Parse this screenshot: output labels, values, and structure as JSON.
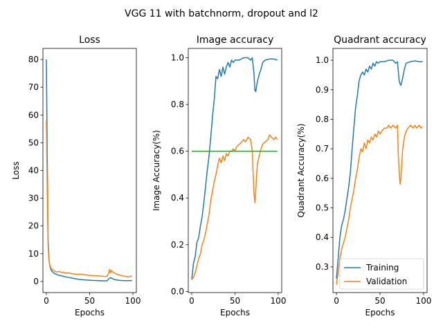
{
  "figure": {
    "suptitle": "VGG 11 with batchnorm, dropout and l2"
  },
  "colors": {
    "training": "#1f77b4",
    "validation": "#ff7f0e",
    "reference": "#2ca02c"
  },
  "chart_data": [
    {
      "type": "line",
      "title": "Loss",
      "xlabel": "Epochs",
      "ylabel": "Loss",
      "xlim": [
        -4,
        104
      ],
      "ylim": [
        -4,
        84
      ],
      "xticks": [
        0,
        50,
        100
      ],
      "yticks": [
        0,
        10,
        20,
        30,
        40,
        50,
        60,
        70,
        80
      ],
      "ytick_labels": [
        "0",
        "10",
        "20",
        "30",
        "40",
        "50",
        "60",
        "70",
        "80"
      ],
      "grid": false,
      "series": [
        {
          "name": "Training",
          "color": "#1f77b4",
          "x": [
            0,
            1,
            2,
            3,
            4,
            5,
            6,
            8,
            10,
            12,
            15,
            18,
            20,
            25,
            30,
            35,
            40,
            45,
            50,
            55,
            60,
            65,
            70,
            72,
            74,
            76,
            78,
            80,
            85,
            90,
            95,
            99
          ],
          "y": [
            80,
            45,
            15,
            8,
            5.5,
            4.5,
            3.8,
            3.2,
            2.8,
            2.5,
            2.2,
            2.0,
            1.8,
            1.5,
            1.2,
            0.9,
            0.7,
            0.55,
            0.45,
            0.35,
            0.3,
            0.25,
            0.2,
            0.9,
            1.4,
            1.1,
            0.8,
            0.6,
            0.4,
            0.3,
            0.3,
            0.35
          ]
        },
        {
          "name": "Validation",
          "color": "#ff7f0e",
          "x": [
            0,
            1,
            2,
            3,
            4,
            5,
            6,
            8,
            10,
            12,
            15,
            18,
            20,
            22,
            25,
            30,
            35,
            40,
            45,
            50,
            55,
            60,
            65,
            70,
            72,
            73,
            74,
            75,
            76,
            78,
            80,
            85,
            90,
            95,
            99
          ],
          "y": [
            58,
            33,
            13,
            7.5,
            5.8,
            5.0,
            4.5,
            4.0,
            3.7,
            3.4,
            3.6,
            3.2,
            3.4,
            3.0,
            3.1,
            2.8,
            2.6,
            2.6,
            2.4,
            2.2,
            2.1,
            2.0,
            1.9,
            1.8,
            3.0,
            4.4,
            3.0,
            4.0,
            3.6,
            3.2,
            2.8,
            2.3,
            1.9,
            1.7,
            2.0
          ]
        }
      ]
    },
    {
      "type": "line",
      "title": "Image accuracy",
      "xlabel": "Epochs",
      "ylabel": "Image Accuracy(%)",
      "xlim": [
        -4,
        104
      ],
      "ylim": [
        -0.005,
        1.04
      ],
      "xticks": [
        0,
        50,
        100
      ],
      "yticks": [
        0.0,
        0.2,
        0.4,
        0.6,
        0.8,
        1.0
      ],
      "ytick_labels": [
        "0.0",
        "0.2",
        "0.4",
        "0.6",
        "0.8",
        "1.0"
      ],
      "grid": false,
      "series": [
        {
          "name": "Training",
          "color": "#1f77b4",
          "x": [
            0,
            2,
            4,
            6,
            8,
            10,
            12,
            14,
            16,
            18,
            20,
            22,
            24,
            26,
            28,
            30,
            32,
            34,
            36,
            38,
            40,
            42,
            44,
            46,
            48,
            50,
            55,
            60,
            65,
            68,
            70,
            72,
            73,
            74,
            75,
            76,
            78,
            80,
            82,
            85,
            90,
            95,
            99
          ],
          "y": [
            0.05,
            0.12,
            0.15,
            0.21,
            0.23,
            0.28,
            0.32,
            0.38,
            0.45,
            0.52,
            0.58,
            0.66,
            0.75,
            0.82,
            0.92,
            0.91,
            0.95,
            0.92,
            0.96,
            0.93,
            0.96,
            0.98,
            0.96,
            0.99,
            0.98,
            0.99,
            0.99,
            1.0,
            1.0,
            0.99,
            1.0,
            0.93,
            0.86,
            0.855,
            0.88,
            0.9,
            0.93,
            0.95,
            0.98,
            0.99,
            0.995,
            0.995,
            0.99
          ]
        },
        {
          "name": "Validation",
          "color": "#ff7f0e",
          "x": [
            0,
            2,
            4,
            6,
            8,
            10,
            12,
            14,
            16,
            18,
            20,
            22,
            24,
            26,
            28,
            30,
            32,
            34,
            36,
            38,
            40,
            42,
            44,
            46,
            48,
            50,
            52,
            55,
            58,
            60,
            62,
            65,
            68,
            70,
            71,
            72,
            73,
            74,
            75,
            76,
            78,
            80,
            82,
            85,
            88,
            90,
            92,
            95,
            97,
            99
          ],
          "y": [
            0.05,
            0.06,
            0.08,
            0.11,
            0.14,
            0.16,
            0.2,
            0.22,
            0.25,
            0.29,
            0.33,
            0.39,
            0.43,
            0.47,
            0.5,
            0.54,
            0.57,
            0.55,
            0.58,
            0.56,
            0.59,
            0.58,
            0.6,
            0.6,
            0.61,
            0.6,
            0.62,
            0.63,
            0.64,
            0.65,
            0.64,
            0.66,
            0.65,
            0.6,
            0.5,
            0.42,
            0.38,
            0.43,
            0.5,
            0.55,
            0.58,
            0.61,
            0.63,
            0.64,
            0.65,
            0.67,
            0.66,
            0.65,
            0.66,
            0.65
          ]
        },
        {
          "name": "",
          "color": "#2ca02c",
          "x": [
            0,
            99
          ],
          "y": [
            0.6,
            0.6
          ]
        }
      ]
    },
    {
      "type": "line",
      "title": "Quadrant accuracy",
      "xlabel": "Epochs",
      "ylabel": "Quadrant Accuracy(%)",
      "xlim": [
        -4,
        104
      ],
      "ylim": [
        0.213,
        1.04
      ],
      "xticks": [
        0,
        50,
        100
      ],
      "yticks": [
        0.3,
        0.4,
        0.5,
        0.6,
        0.7,
        0.8,
        0.9,
        1.0
      ],
      "ytick_labels": [
        "0.3",
        "0.4",
        "0.5",
        "0.6",
        "0.7",
        "0.8",
        "0.9",
        "1.0"
      ],
      "grid": false,
      "legend": {
        "placement": "lower-right",
        "entries": [
          "Training",
          "Validation"
        ]
      },
      "series": [
        {
          "name": "Training",
          "color": "#1f77b4",
          "x": [
            0,
            2,
            4,
            6,
            8,
            10,
            12,
            14,
            16,
            18,
            20,
            22,
            24,
            26,
            28,
            30,
            32,
            34,
            36,
            38,
            40,
            42,
            44,
            46,
            48,
            50,
            55,
            60,
            65,
            68,
            70,
            72,
            73,
            74,
            76,
            78,
            80,
            85,
            90,
            95,
            99
          ],
          "y": [
            0.26,
            0.33,
            0.4,
            0.44,
            0.46,
            0.49,
            0.53,
            0.57,
            0.62,
            0.7,
            0.77,
            0.84,
            0.88,
            0.93,
            0.95,
            0.96,
            0.95,
            0.97,
            0.96,
            0.98,
            0.97,
            0.99,
            0.98,
            0.995,
            0.99,
            0.995,
            0.995,
            1.0,
            1.0,
            0.99,
            0.995,
            0.93,
            0.92,
            0.915,
            0.94,
            0.97,
            0.99,
            0.995,
            0.998,
            0.995,
            0.995
          ]
        },
        {
          "name": "Validation",
          "color": "#ff7f0e",
          "x": [
            0,
            2,
            4,
            6,
            8,
            10,
            12,
            14,
            16,
            18,
            20,
            22,
            24,
            26,
            28,
            30,
            32,
            34,
            36,
            38,
            40,
            42,
            44,
            46,
            48,
            50,
            52,
            55,
            58,
            60,
            62,
            65,
            68,
            70,
            71,
            72,
            73,
            74,
            75,
            76,
            78,
            80,
            82,
            85,
            88,
            90,
            92,
            95,
            97,
            99
          ],
          "y": [
            0.24,
            0.28,
            0.33,
            0.36,
            0.38,
            0.4,
            0.43,
            0.46,
            0.5,
            0.53,
            0.56,
            0.6,
            0.63,
            0.67,
            0.7,
            0.69,
            0.72,
            0.7,
            0.73,
            0.72,
            0.74,
            0.73,
            0.75,
            0.74,
            0.76,
            0.75,
            0.76,
            0.77,
            0.77,
            0.78,
            0.77,
            0.78,
            0.77,
            0.78,
            0.68,
            0.62,
            0.58,
            0.6,
            0.65,
            0.7,
            0.74,
            0.76,
            0.77,
            0.78,
            0.77,
            0.78,
            0.77,
            0.78,
            0.77,
            0.775
          ]
        }
      ]
    }
  ]
}
